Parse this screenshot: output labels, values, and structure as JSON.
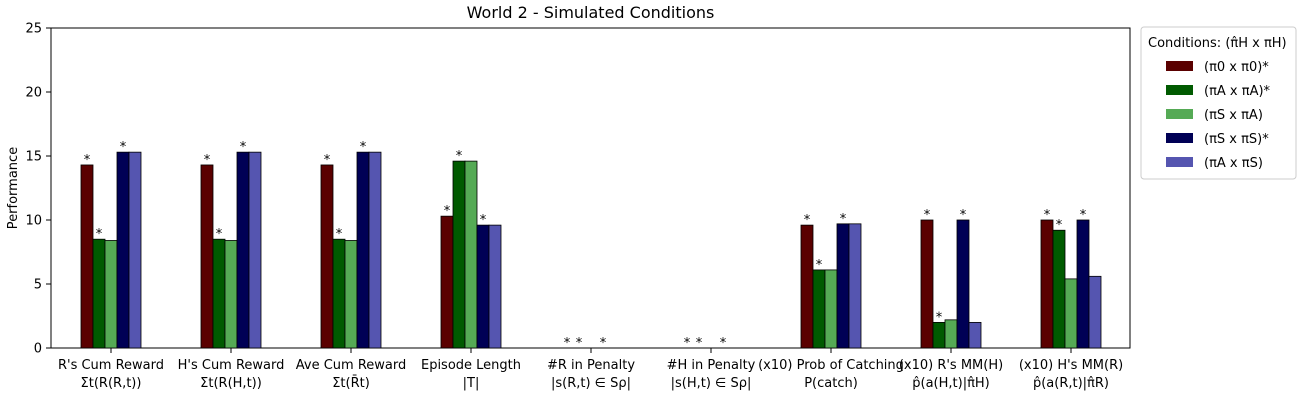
{
  "chart_data": {
    "type": "bar",
    "title": "World 2 - Simulated Conditions",
    "xlabel": "",
    "ylabel": "Performance",
    "ylim": [
      0,
      25
    ],
    "yticks": [
      "0",
      "5",
      "10",
      "15",
      "20",
      "25"
    ],
    "categories": [
      {
        "line1": "R's Cum Reward",
        "line2": "Σt(R(R,t))"
      },
      {
        "line1": "H's Cum Reward",
        "line2": "Σt(R(H,t))"
      },
      {
        "line1": "Ave Cum Reward",
        "line2": "Σt(R̄t)"
      },
      {
        "line1": "Episode Length",
        "line2": "|T|"
      },
      {
        "line1": "#R in Penalty",
        "line2": "|s(R,t) ∈ Sρ|"
      },
      {
        "line1": "#H in Penalty",
        "line2": "|s(H,t) ∈ Sρ|"
      },
      {
        "line1": "(x10) Prob of Catching",
        "line2": "P(catch)"
      },
      {
        "line1": "(x10) R's MM(H)",
        "line2": "p̂(a(H,t)|π̂H)"
      },
      {
        "line1": "(x10) H's MM(R)",
        "line2": "p̂(a(R,t)|π̂R)"
      }
    ],
    "legend_title": "Conditions: (π̂H x πH)",
    "legend_position": "outside-right",
    "significance_marker": "*",
    "series": [
      {
        "name": "(π0 x π0)*",
        "color": "#5a0000",
        "values": [
          14.3,
          14.3,
          14.3,
          10.3,
          0,
          0,
          9.6,
          10.0,
          10.0
        ],
        "stars": [
          true,
          true,
          true,
          true,
          true,
          true,
          true,
          true,
          true
        ]
      },
      {
        "name": "(πA x πA)*",
        "color": "#005a00",
        "values": [
          8.5,
          8.5,
          8.5,
          14.6,
          0,
          0,
          6.1,
          2.0,
          9.2
        ],
        "stars": [
          true,
          true,
          true,
          true,
          true,
          true,
          true,
          true,
          true
        ]
      },
      {
        "name": "(πS x πA)",
        "color": "#55aa55",
        "values": [
          8.4,
          8.4,
          8.4,
          14.6,
          0,
          0,
          6.1,
          2.2,
          5.4
        ],
        "stars": [
          false,
          false,
          false,
          false,
          false,
          false,
          false,
          false,
          false
        ]
      },
      {
        "name": "(πS x πS)*",
        "color": "#000055",
        "values": [
          15.3,
          15.3,
          15.3,
          9.6,
          0,
          0,
          9.7,
          10.0,
          10.0
        ],
        "stars": [
          true,
          true,
          true,
          true,
          true,
          true,
          true,
          true,
          true
        ]
      },
      {
        "name": "(πA x πS)",
        "color": "#5555b0",
        "values": [
          15.3,
          15.3,
          15.3,
          9.6,
          0,
          0,
          9.7,
          2.0,
          5.6
        ],
        "stars": [
          false,
          false,
          false,
          false,
          false,
          false,
          false,
          false,
          false
        ]
      }
    ]
  }
}
